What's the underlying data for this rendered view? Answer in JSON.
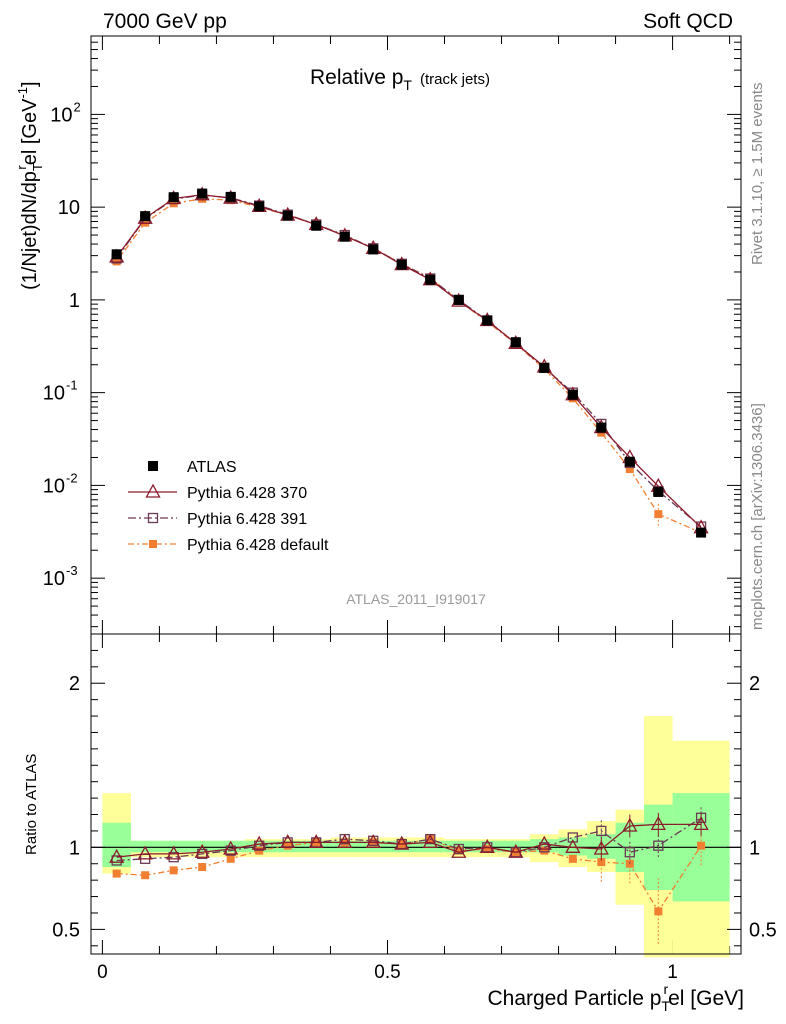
{
  "header": {
    "energy": "7000 GeV pp",
    "process": "Soft QCD"
  },
  "side": {
    "rivet": "Rivet 3.1.10, ≥ 1.5M events",
    "mcplots": "mcplots.cern.ch [arXiv:1306.3436]"
  },
  "title": {
    "main": "Relative p",
    "sub": "T",
    "note": "(track jets)"
  },
  "analysis_id": "ATLAS_2011_I919017",
  "ylabel_main": "(1/Njet)dN/dp",
  "ylabel_main_sub1": "T",
  "ylabel_main_mid": "el [GeV",
  "ylabel_main_sup": "-1",
  "ylabel_main_end": "]",
  "ylabel_main_sup2": "r",
  "ylabel_ratio": "Ratio to ATLAS",
  "xlabel": "Charged Particle p",
  "xlabel_sub": "T",
  "xlabel_sup": "r",
  "xlabel_end": "el [GeV]",
  "legend": [
    {
      "label": "ATLAS",
      "color": "#000000",
      "marker": "square-filled"
    },
    {
      "label": "Pythia 6.428 370",
      "color": "#8b1a2b",
      "marker": "triangle-open"
    },
    {
      "label": "Pythia 6.428 391",
      "color": "#6b3a55",
      "marker": "square-open"
    },
    {
      "label": "Pythia 6.428 default",
      "color": "#f07f32",
      "marker": "square-filled"
    }
  ],
  "main_ticks": {
    "x": [
      "0",
      "0.5",
      "1"
    ],
    "y": [
      {
        "v": 0.001,
        "base": "10",
        "exp": "-3"
      },
      {
        "v": 0.01,
        "base": "10",
        "exp": "-2"
      },
      {
        "v": 0.1,
        "base": "10",
        "exp": "-1"
      },
      {
        "v": 1,
        "base": "1",
        "exp": ""
      },
      {
        "v": 10,
        "base": "10",
        "exp": ""
      },
      {
        "v": 100,
        "base": "10",
        "exp": "2"
      }
    ]
  },
  "ratio_ticks": {
    "y": [
      "0.5",
      "1",
      "2"
    ]
  },
  "chart_data": {
    "type": "line",
    "x_range": [
      -0.02,
      1.12
    ],
    "y_range_main": [
      0.00025,
      700
    ],
    "y_scale_main": "log",
    "y_range_ratio": [
      0.35,
      2.3
    ],
    "x": [
      0.025,
      0.075,
      0.125,
      0.175,
      0.225,
      0.275,
      0.325,
      0.375,
      0.425,
      0.475,
      0.525,
      0.575,
      0.625,
      0.675,
      0.725,
      0.775,
      0.825,
      0.875,
      0.925,
      0.975,
      1.05
    ],
    "bin_edges": [
      0.0,
      0.05,
      0.1,
      0.15,
      0.2,
      0.25,
      0.3,
      0.35,
      0.4,
      0.45,
      0.5,
      0.55,
      0.6,
      0.65,
      0.7,
      0.75,
      0.8,
      0.85,
      0.9,
      0.95,
      1.0,
      1.1
    ],
    "series": [
      {
        "name": "ATLAS",
        "values": [
          3.1,
          8.0,
          12.8,
          14.0,
          12.9,
          10.2,
          8.1,
          6.3,
          4.8,
          3.5,
          2.4,
          1.65,
          1.0,
          0.6,
          0.35,
          0.185,
          0.095,
          0.042,
          0.018,
          0.0085,
          0.0031
        ]
      },
      {
        "name": "Pythia 6.428 370",
        "values": [
          2.9,
          7.6,
          12.4,
          13.6,
          12.5,
          10.2,
          8.2,
          6.5,
          4.9,
          3.6,
          2.4,
          1.65,
          0.97,
          0.6,
          0.34,
          0.19,
          0.095,
          0.042,
          0.02,
          0.0098,
          0.0035
        ]
      },
      {
        "name": "Pythia 6.428 391",
        "values": [
          2.8,
          7.5,
          12.2,
          13.5,
          12.6,
          10.4,
          8.3,
          6.5,
          5.0,
          3.6,
          2.45,
          1.7,
          1.0,
          0.6,
          0.34,
          0.185,
          0.1,
          0.046,
          0.0175,
          0.0087,
          0.0036
        ]
      },
      {
        "name": "Pythia 6.428 default",
        "values": [
          2.6,
          6.8,
          11.0,
          12.3,
          11.9,
          10.0,
          8.2,
          6.5,
          4.9,
          3.6,
          2.45,
          1.72,
          0.98,
          0.58,
          0.335,
          0.18,
          0.087,
          0.037,
          0.015,
          0.0049,
          0.0031
        ]
      }
    ],
    "ratio_series": [
      {
        "name": "Pythia 6.428 370",
        "values": [
          0.94,
          0.96,
          0.96,
          0.97,
          0.99,
          1.02,
          1.03,
          1.03,
          1.03,
          1.03,
          1.02,
          1.03,
          0.97,
          1.0,
          0.97,
          1.02,
          1.0,
          0.99,
          1.13,
          1.14,
          1.14
        ]
      },
      {
        "name": "Pythia 6.428 391",
        "values": [
          0.92,
          0.93,
          0.94,
          0.96,
          0.98,
          1.01,
          1.03,
          1.03,
          1.05,
          1.04,
          1.02,
          1.05,
          0.99,
          1.0,
          0.97,
          1.0,
          1.06,
          1.1,
          0.97,
          1.01,
          1.18
        ]
      },
      {
        "name": "Pythia 6.428 default",
        "values": [
          0.84,
          0.83,
          0.86,
          0.88,
          0.93,
          0.98,
          1.01,
          1.03,
          1.03,
          1.03,
          1.02,
          1.05,
          0.98,
          0.99,
          0.97,
          0.98,
          0.93,
          0.91,
          0.9,
          0.61,
          1.01
        ]
      }
    ],
    "ratio_band_green": [
      [
        0.88,
        1.15
      ],
      [
        0.97,
        1.04
      ],
      [
        0.97,
        1.04
      ],
      [
        0.97,
        1.04
      ],
      [
        0.97,
        1.04
      ],
      [
        0.97,
        1.04
      ],
      [
        0.97,
        1.04
      ],
      [
        0.97,
        1.04
      ],
      [
        0.97,
        1.04
      ],
      [
        0.97,
        1.04
      ],
      [
        0.97,
        1.04
      ],
      [
        0.97,
        1.04
      ],
      [
        0.97,
        1.04
      ],
      [
        0.97,
        1.04
      ],
      [
        0.97,
        1.04
      ],
      [
        0.97,
        1.05
      ],
      [
        0.95,
        1.06
      ],
      [
        0.93,
        1.08
      ],
      [
        0.85,
        1.15
      ],
      [
        0.74,
        1.26
      ],
      [
        0.67,
        1.33
      ]
    ],
    "ratio_band_yellow": [
      [
        0.84,
        1.33
      ],
      [
        0.94,
        1.04
      ],
      [
        0.94,
        1.04
      ],
      [
        0.94,
        1.04
      ],
      [
        0.94,
        1.04
      ],
      [
        0.94,
        1.05
      ],
      [
        0.94,
        1.05
      ],
      [
        0.94,
        1.05
      ],
      [
        0.94,
        1.06
      ],
      [
        0.94,
        1.06
      ],
      [
        0.94,
        1.06
      ],
      [
        0.94,
        1.06
      ],
      [
        0.94,
        1.05
      ],
      [
        0.94,
        1.05
      ],
      [
        0.94,
        1.05
      ],
      [
        0.91,
        1.08
      ],
      [
        0.88,
        1.11
      ],
      [
        0.85,
        1.16
      ],
      [
        0.65,
        1.23
      ],
      [
        0.33,
        1.8
      ],
      [
        0.33,
        1.65
      ]
    ]
  }
}
